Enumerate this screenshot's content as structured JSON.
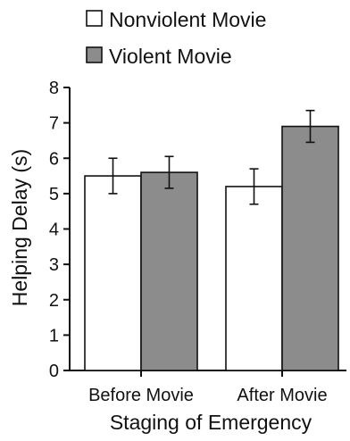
{
  "chart_data": {
    "type": "bar",
    "title": "",
    "xlabel": "Staging of Emergency",
    "ylabel": "Helping Delay (s)",
    "ylim": [
      0,
      8
    ],
    "yticks": [
      0,
      1,
      2,
      3,
      4,
      5,
      6,
      7,
      8
    ],
    "categories": [
      "Before Movie",
      "After Movie"
    ],
    "series": [
      {
        "name": "Nonviolent Movie",
        "color": "#ffffff",
        "values": [
          5.5,
          5.2
        ],
        "error": [
          0.5,
          0.5
        ]
      },
      {
        "name": "Violent Movie",
        "color": "#8c8c8c",
        "values": [
          5.6,
          6.9
        ],
        "error": [
          0.45,
          0.45
        ]
      }
    ],
    "legend_position": "top-left",
    "grid": false,
    "error_bars": "upper and lower whiskers"
  }
}
